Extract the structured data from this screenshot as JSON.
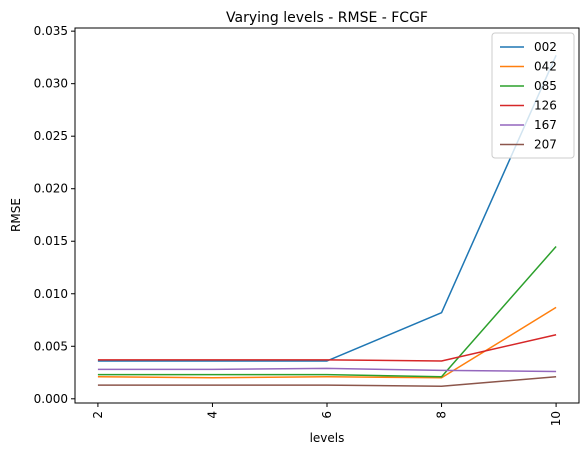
{
  "chart_data": {
    "type": "line",
    "title": "Varying levels - RMSE - FCGF",
    "xlabel": "levels",
    "ylabel": "RMSE",
    "x": [
      2,
      4,
      6,
      8,
      10
    ],
    "xticks": [
      "2",
      "4",
      "6",
      "8",
      "10"
    ],
    "yticks": [
      "0.000",
      "0.005",
      "0.010",
      "0.015",
      "0.020",
      "0.025",
      "0.030",
      "0.035"
    ],
    "ytick_values": [
      0,
      0.005,
      0.01,
      0.015,
      0.02,
      0.025,
      0.03,
      0.035
    ],
    "xlim": [
      1.6,
      10.4
    ],
    "ylim": [
      -0.0004,
      0.0353
    ],
    "grid": false,
    "legend_position": "top-right",
    "series": [
      {
        "name": "002",
        "color": "#1f77b4",
        "values": [
          0.0036,
          0.0036,
          0.0036,
          0.0082,
          0.0327
        ]
      },
      {
        "name": "042",
        "color": "#ff7f0e",
        "values": [
          0.0021,
          0.002,
          0.0021,
          0.002,
          0.0087
        ]
      },
      {
        "name": "085",
        "color": "#2ca02c",
        "values": [
          0.0023,
          0.0023,
          0.0023,
          0.0021,
          0.0145
        ]
      },
      {
        "name": "126",
        "color": "#d62728",
        "values": [
          0.0037,
          0.0037,
          0.0037,
          0.0036,
          0.0061
        ]
      },
      {
        "name": "167",
        "color": "#9467bd",
        "values": [
          0.0028,
          0.0028,
          0.0029,
          0.0027,
          0.0026
        ]
      },
      {
        "name": "207",
        "color": "#8c564b",
        "values": [
          0.0013,
          0.0013,
          0.0013,
          0.0012,
          0.0021
        ]
      }
    ]
  }
}
